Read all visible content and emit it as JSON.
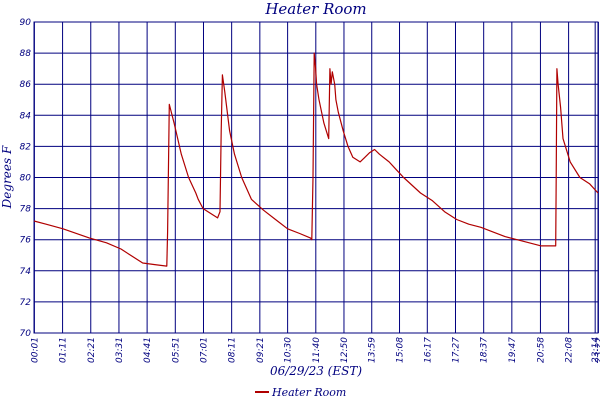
{
  "chart_data": {
    "type": "line",
    "title": "Heater Room",
    "xlabel": "06/29/23 (EST)",
    "ylabel": "Degrees F",
    "ylim": [
      70,
      90
    ],
    "yticks": [
      "70",
      "72",
      "74",
      "76",
      "78",
      "80",
      "82",
      "84",
      "86",
      "88",
      "90"
    ],
    "xlim": [
      0,
      23.35
    ],
    "xticks": [
      {
        "label": "00:01",
        "x": 0.017
      },
      {
        "label": "01:11",
        "x": 1.183
      },
      {
        "label": "02:21",
        "x": 2.35
      },
      {
        "label": "03:31",
        "x": 3.517
      },
      {
        "label": "04:41",
        "x": 4.683
      },
      {
        "label": "05:51",
        "x": 5.85
      },
      {
        "label": "07:01",
        "x": 7.017
      },
      {
        "label": "08:11",
        "x": 8.183
      },
      {
        "label": "09:21",
        "x": 9.35
      },
      {
        "label": "10:30",
        "x": 10.5
      },
      {
        "label": "11:40",
        "x": 11.667
      },
      {
        "label": "12:50",
        "x": 12.833
      },
      {
        "label": "13:59",
        "x": 13.983
      },
      {
        "label": "15:08",
        "x": 15.133
      },
      {
        "label": "16:17",
        "x": 16.283
      },
      {
        "label": "17:27",
        "x": 17.45
      },
      {
        "label": "18:37",
        "x": 18.617
      },
      {
        "label": "19:47",
        "x": 19.783
      },
      {
        "label": "20:58",
        "x": 20.967
      },
      {
        "label": "22:08",
        "x": 22.133
      },
      {
        "label": "23:14",
        "x": 23.233
      },
      {
        "label": "23:22",
        "x": 23.367
      }
    ],
    "grid": true,
    "legend_position": "bottom-center",
    "series": [
      {
        "name": "Heater Room",
        "color": "#b00000",
        "x": [
          0.0,
          0.5,
          1.2,
          2.3,
          3.0,
          3.6,
          4.0,
          4.5,
          5.0,
          5.5,
          5.53,
          5.6,
          5.8,
          6.1,
          6.4,
          6.7,
          6.8,
          7.0,
          7.4,
          7.6,
          7.7,
          7.75,
          7.8,
          7.9,
          8.1,
          8.3,
          8.6,
          9.0,
          9.5,
          10.0,
          10.5,
          11.0,
          11.45,
          11.5,
          11.55,
          11.6,
          11.65,
          11.7,
          11.8,
          12.0,
          12.2,
          12.25,
          12.3,
          12.35,
          12.45,
          12.5,
          12.6,
          12.8,
          13.0,
          13.2,
          13.5,
          13.7,
          13.9,
          14.1,
          14.3,
          14.7,
          15.0,
          15.3,
          16.0,
          16.5,
          17.0,
          17.5,
          18.0,
          18.5,
          19.0,
          19.5,
          20.0,
          20.5,
          21.0,
          21.6,
          21.62,
          21.65,
          21.7,
          21.8,
          21.9,
          22.2,
          22.6,
          23.0,
          23.35
        ],
        "values": [
          77.2,
          77.0,
          76.7,
          76.1,
          75.8,
          75.4,
          75.0,
          74.5,
          74.4,
          74.3,
          76.5,
          84.7,
          83.5,
          81.5,
          80.0,
          79.0,
          78.6,
          78.0,
          77.6,
          77.4,
          77.8,
          83.0,
          86.6,
          85.5,
          83.0,
          81.5,
          80.0,
          78.6,
          77.9,
          77.3,
          76.7,
          76.4,
          76.1,
          76.0,
          80.0,
          88.0,
          87.2,
          86.0,
          85.0,
          83.5,
          82.5,
          87.0,
          86.0,
          86.8,
          86.0,
          85.0,
          84.2,
          83.0,
          82.0,
          81.3,
          81.0,
          81.3,
          81.6,
          81.8,
          81.5,
          81.0,
          80.5,
          80.0,
          79.0,
          78.5,
          77.8,
          77.3,
          77.0,
          76.8,
          76.5,
          76.2,
          76.0,
          75.8,
          75.6,
          75.6,
          80.0,
          87.0,
          86.0,
          84.5,
          82.5,
          81.0,
          80.0,
          79.6,
          79.0
        ]
      }
    ]
  }
}
